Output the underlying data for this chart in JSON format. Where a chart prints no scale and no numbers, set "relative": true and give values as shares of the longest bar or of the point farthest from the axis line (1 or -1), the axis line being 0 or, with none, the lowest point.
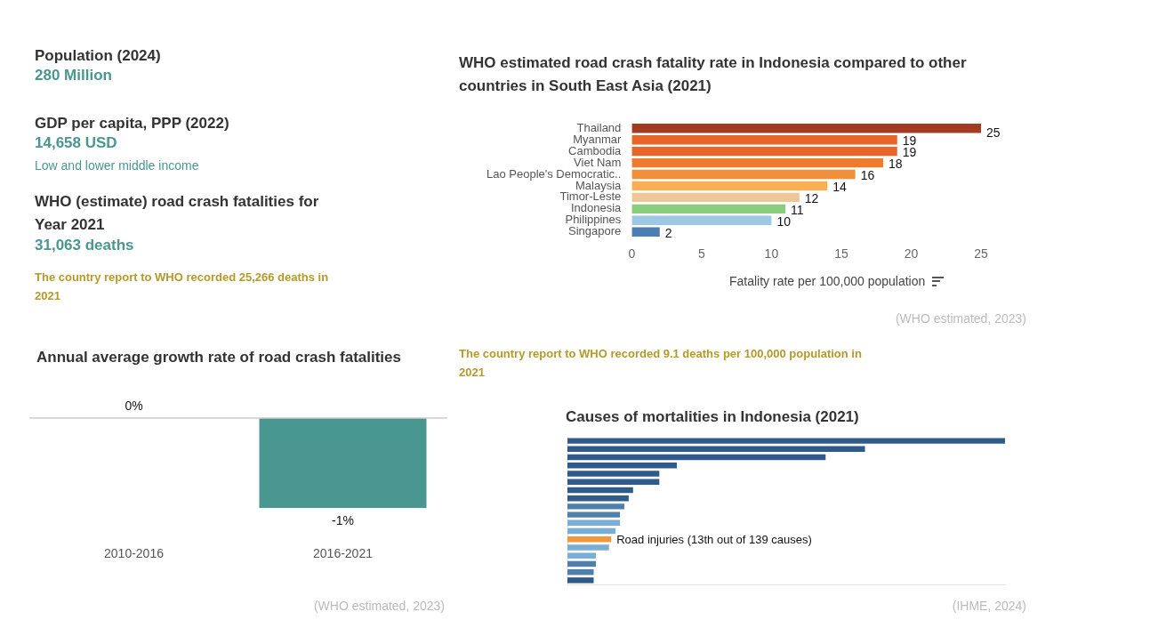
{
  "chart_data": [
    {
      "type": "other",
      "annotations": [
        "Population (2024)",
        "280 Million",
        "GDP per capita, PPP (2022)",
        "14,658 USD",
        "Low and lower middle income",
        "WHO (estimate) road crash fatalities for Year 2021",
        "31,063 deaths",
        "The country report to WHO recorded 25,266 deaths in 2021"
      ]
    },
    {
      "type": "bar",
      "orientation": "horizontal",
      "title": "WHO estimated road crash fatality rate in Indonesia compared to other countries in South East Asia (2021)",
      "xlabel": "Fatality rate per 100,000 population",
      "categories": [
        "Thailand",
        "Myanmar",
        "Cambodia",
        "Viet Nam",
        "Lao People's Democratic..",
        "Malaysia",
        "Timor-Leste",
        "Indonesia",
        "Philippines",
        "Singapore"
      ],
      "values": [
        25,
        19,
        19,
        18,
        16,
        14,
        12,
        11,
        10,
        2
      ],
      "data_labels": true,
      "colors": [
        "#a33b22",
        "#e8652a",
        "#e8652a",
        "#ef7b2e",
        "#f28f3b",
        "#f9ae55",
        "#ecc898",
        "#8acd7c",
        "#9dc8e4",
        "#4b7fb3"
      ],
      "xlim": [
        0,
        25
      ],
      "xticks": [
        0,
        5,
        10,
        15,
        20,
        25
      ],
      "annotations": [
        "(WHO estimated, 2023)",
        "The country report to WHO recorded 9.1 deaths per 100,000 population in 2021"
      ]
    },
    {
      "type": "bar",
      "title": "Annual average growth rate of road crash fatalities",
      "categories": [
        "2010-2016",
        "2016-2021"
      ],
      "values": [
        0,
        -1
      ],
      "value_labels": [
        "0%",
        "-1%"
      ],
      "color": "#4a9791",
      "annotations": [
        "(WHO estimated, 2023)"
      ]
    },
    {
      "type": "bar",
      "orientation": "horizontal",
      "relative": true,
      "title": "Causes of mortalities in Indonesia (2021)",
      "categories": [
        null,
        null,
        null,
        null,
        null,
        null,
        null,
        null,
        null,
        null,
        null,
        null,
        "Road injuries (13th out of 139 causes)",
        null,
        null,
        null,
        null,
        null
      ],
      "values": [
        1,
        0.68,
        0.59,
        0.25,
        0.21,
        0.21,
        0.15,
        0.14,
        0.13,
        0.12,
        0.12,
        0.11,
        0.1,
        0.095,
        0.065,
        0.065,
        0.06,
        0.06
      ],
      "colors": [
        "#2e5b8a",
        "#2e5b8a",
        "#2e5b8a",
        "#2e5b8a",
        "#2e5b8a",
        "#2e5b8a",
        "#2e5b8a",
        "#2e5b8a",
        "#4f7fab",
        "#4f7fab",
        "#7aaed6",
        "#7aaed6",
        "#f5963a",
        "#7aaed6",
        "#7aaed6",
        "#4f7fab",
        "#4f7fab",
        "#2e5b8a"
      ],
      "annotations": [
        "(IHME, 2024)"
      ]
    }
  ]
}
